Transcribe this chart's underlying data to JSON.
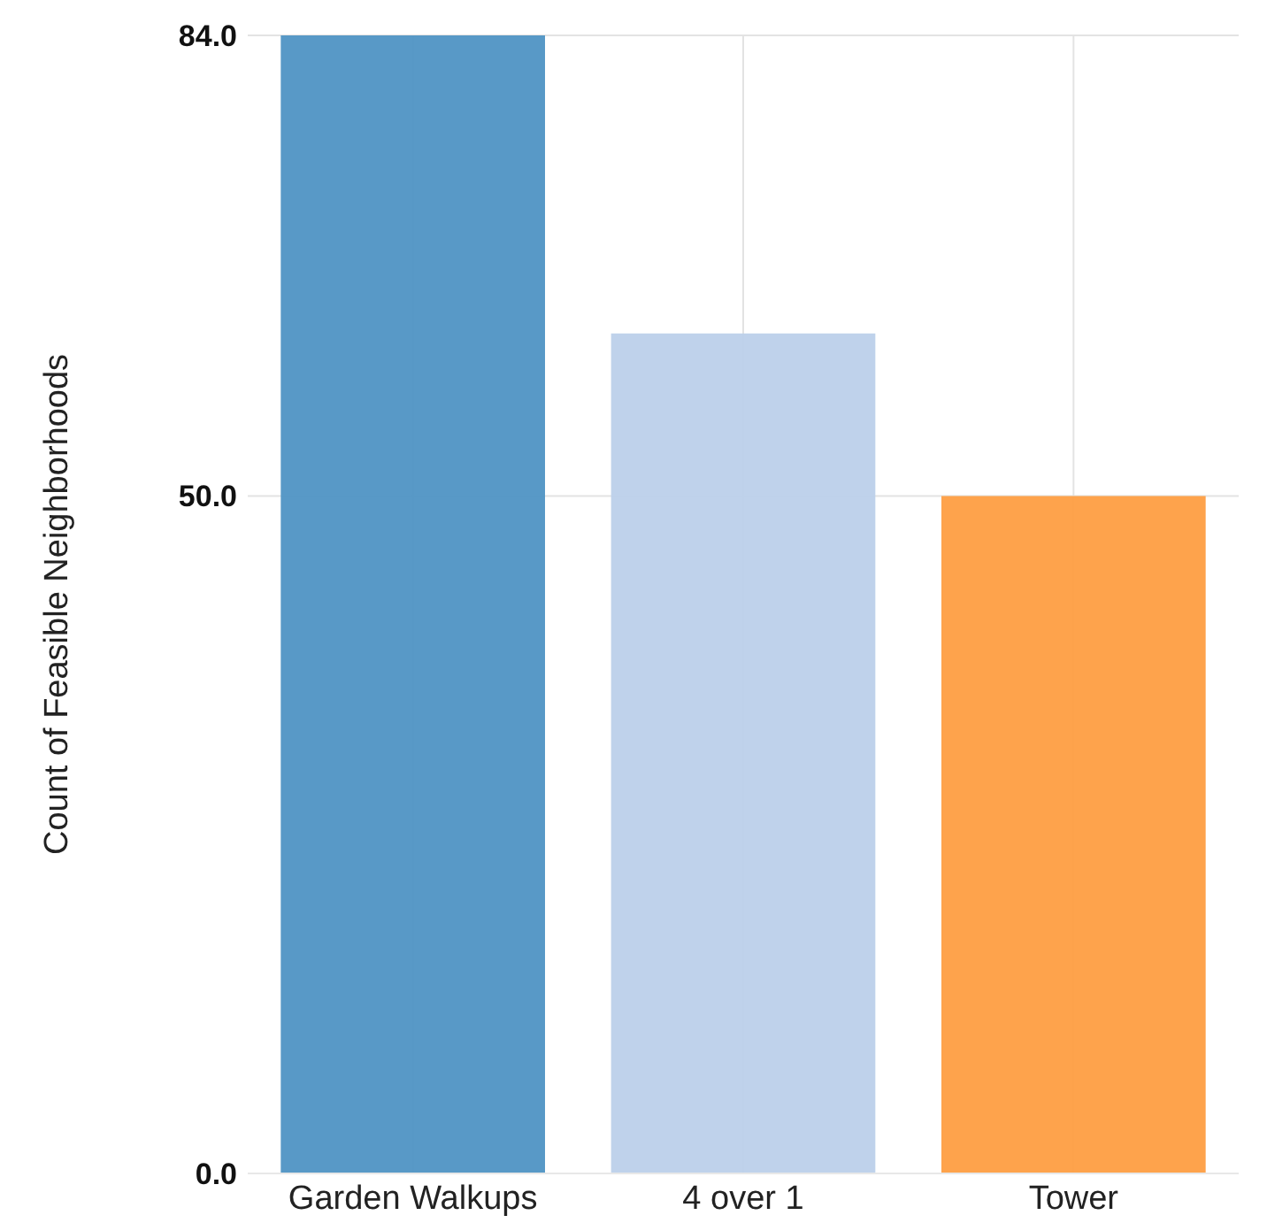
{
  "chart_data": {
    "type": "bar",
    "ylabel": "Count of Feasible Neighborhoods",
    "categories": [
      "Garden Walkups",
      "4 over 1",
      "Tower"
    ],
    "values": [
      84,
      62,
      50
    ],
    "colors": [
      "#4f93c4",
      "#bcd0ea",
      "#fe9e42"
    ],
    "ylim": [
      0,
      84
    ],
    "yticks": [
      {
        "value": 0,
        "label": "0.0"
      },
      {
        "value": 50,
        "label": "50.0"
      },
      {
        "value": 84,
        "label": "84.0"
      }
    ],
    "grid": true
  }
}
